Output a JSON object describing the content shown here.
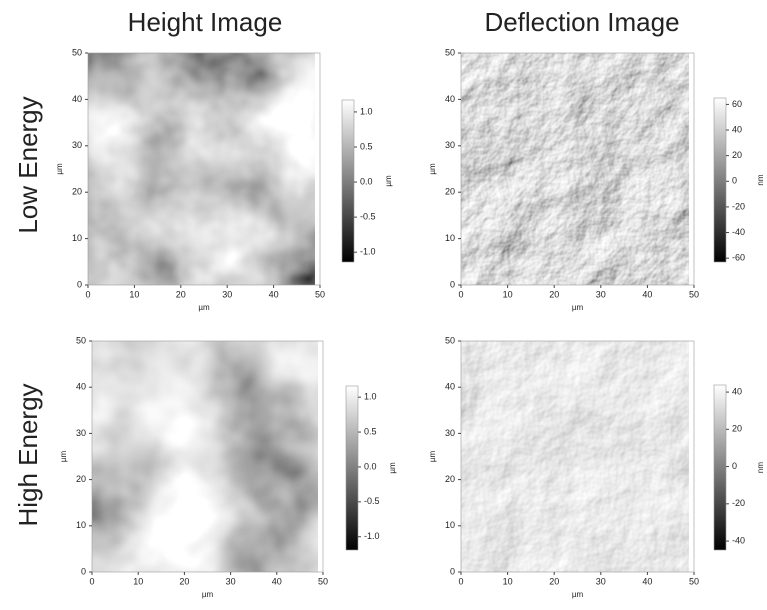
{
  "columns": [
    "Height Image",
    "Deflection Image"
  ],
  "rows": [
    "Low Energy",
    "High Energy"
  ],
  "chart_data": [
    {
      "type": "image",
      "xlim": [
        0,
        50
      ],
      "ylim": [
        0,
        50
      ],
      "xticks": [
        0,
        10,
        20,
        30,
        40,
        50
      ],
      "yticks": [
        0,
        10,
        20,
        30,
        40,
        50
      ],
      "xlabel": "µm",
      "ylabel": "µm",
      "colorbar": {
        "lim": [
          -1.14,
          1.17
        ],
        "ticks": [
          {
            "value": 1,
            "label": "1.0"
          },
          0.5,
          {
            "value": 0,
            "label": "0.0"
          },
          -0.5,
          {
            "value": -1,
            "label": "-1.0"
          }
        ],
        "label": "µm"
      }
    },
    {
      "type": "image",
      "xlim": [
        0,
        50
      ],
      "ylim": [
        0,
        50
      ],
      "xticks": [
        0,
        10,
        20,
        30,
        40,
        50
      ],
      "yticks": [
        0,
        10,
        20,
        30,
        40,
        50
      ],
      "xlabel": "µm",
      "ylabel": "µm",
      "colorbar": {
        "lim": [
          -63,
          65
        ],
        "ticks": [
          60,
          40,
          20,
          0,
          -20,
          -40,
          -60
        ],
        "label": "nm"
      }
    },
    {
      "type": "image",
      "xlim": [
        0,
        50
      ],
      "ylim": [
        0,
        50
      ],
      "xticks": [
        0,
        10,
        20,
        30,
        40,
        50
      ],
      "yticks": [
        0,
        10,
        20,
        30,
        40,
        50
      ],
      "xlabel": "µm",
      "ylabel": "µm",
      "colorbar": {
        "lim": [
          -1.19,
          1.16
        ],
        "ticks": [
          {
            "value": 1,
            "label": "1.0"
          },
          0.5,
          {
            "value": 0,
            "label": "0.0"
          },
          -0.5,
          {
            "value": -1,
            "label": "-1.0"
          }
        ],
        "label": "µm"
      }
    },
    {
      "type": "image",
      "xlim": [
        0,
        50
      ],
      "ylim": [
        0,
        50
      ],
      "xticks": [
        0,
        10,
        20,
        30,
        40,
        50
      ],
      "yticks": [
        0,
        10,
        20,
        30,
        40,
        50
      ],
      "xlabel": "µm",
      "ylabel": "µm",
      "colorbar": {
        "lim": [
          -44.8,
          43.8
        ],
        "ticks": [
          40,
          20,
          0,
          -20,
          -40
        ],
        "label": "nm"
      }
    }
  ]
}
